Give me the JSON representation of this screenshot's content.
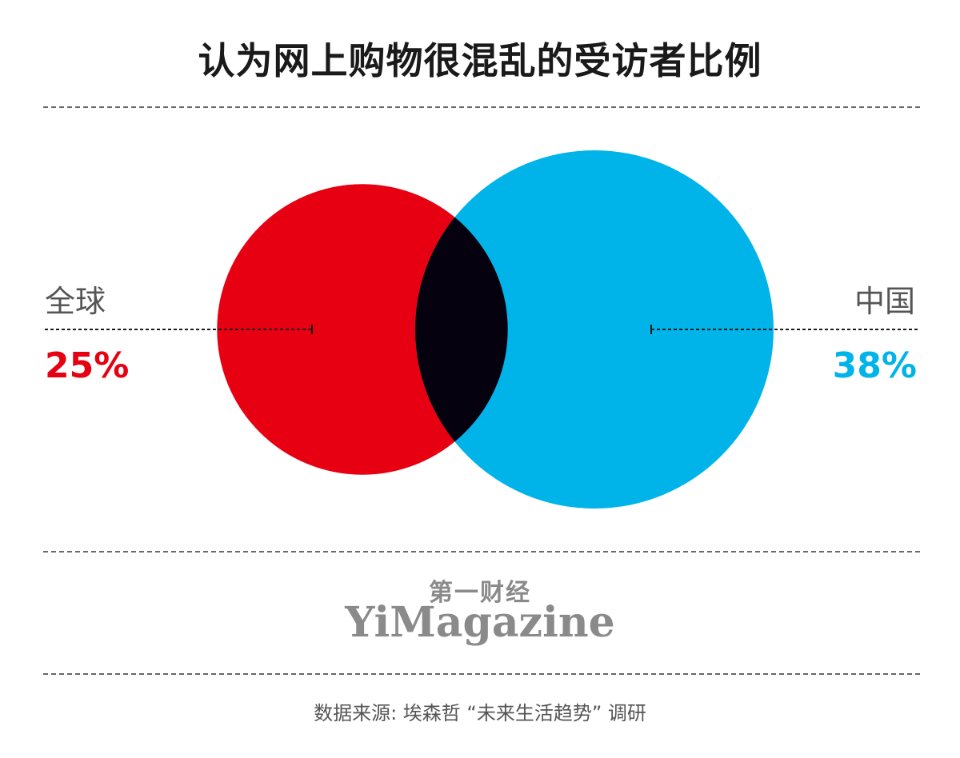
{
  "chart_data": {
    "type": "venn",
    "title": "认为网上购物很混乱的受访者比例",
    "sets": [
      {
        "name": "全球",
        "value": 25,
        "label": "25%",
        "color": "#e60012"
      },
      {
        "name": "中国",
        "value": 38,
        "label": "38%",
        "color": "#00b4ea"
      }
    ],
    "overlap_color": "#05010f"
  },
  "logo": {
    "cn": "第一财经",
    "en": "YiMagazine"
  },
  "source": "数据来源: 埃森哲 “未来生活趋势” 调研"
}
